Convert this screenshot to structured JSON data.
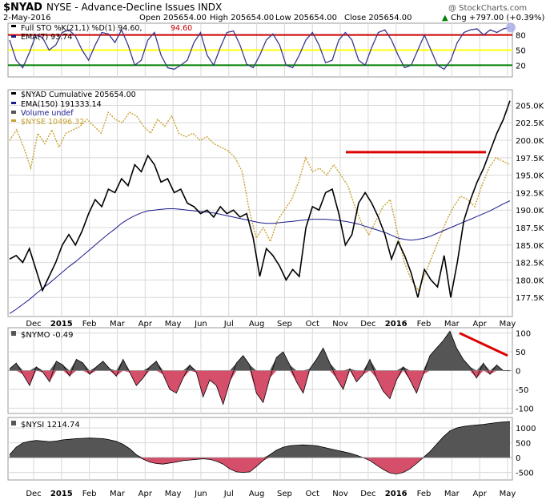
{
  "header": {
    "symbol": "$NYAD",
    "exchange_desc": "NYSE - Advance-Decline Issues INDX",
    "date": "2-May-2016",
    "open": "Open 205654.00",
    "high": "High 205654.00",
    "low": "Low 205654.00",
    "close": "Close 205654.00",
    "chg": "Chg +797.00 (+0.39%)",
    "watermark": "@ StockCharts.com",
    "chg_arrow": "▲"
  },
  "colors": {
    "price": "#000000",
    "ema": "#1a1a8c",
    "nyse": "#c8a030",
    "overbought": "#cc0000",
    "mid": "#ffff00",
    "oversold": "#008000",
    "stoch": "#3a3a8c",
    "pos_fill": "#555555",
    "neg_fill": "#d64f6a",
    "trend": "#dd0000",
    "grid": "#d8d8d8"
  },
  "chart_data": [
    {
      "panel": "stochastic",
      "type": "line",
      "legend": [
        "Full STO %K(21,1) %D(1) 94.60, 94.60",
        "EMA(7) 93.74"
      ],
      "k_label": "Full STO %K(21,1) %D(1) 94.60,",
      "k_value": "94.60",
      "ema_label": "EMA(7) 93.74",
      "ylim": [
        0,
        100
      ],
      "ticks": [
        20,
        50,
        80
      ],
      "levels": [
        80,
        50,
        20
      ],
      "series": [
        {
          "name": "%K",
          "values": [
            70,
            30,
            15,
            45,
            80,
            75,
            50,
            60,
            85,
            90,
            78,
            50,
            30,
            60,
            85,
            82,
            65,
            90,
            60,
            20,
            30,
            70,
            85,
            40,
            15,
            12,
            20,
            30,
            65,
            85,
            40,
            20,
            55,
            85,
            88,
            60,
            22,
            15,
            40,
            70,
            82,
            60,
            20,
            15,
            40,
            70,
            85,
            60,
            25,
            30,
            70,
            85,
            70,
            30,
            20,
            55,
            85,
            90,
            70,
            40,
            15,
            20,
            50,
            80,
            50,
            20,
            12,
            30,
            65,
            85,
            90,
            92,
            80,
            90,
            85,
            92,
            94.6
          ]
        }
      ]
    },
    {
      "panel": "price",
      "type": "line",
      "legend": [
        "$NYAD Cumulative 205654.00",
        "EMA(150) 191333.14",
        "Volume undef",
        "$NYSE 10496.32"
      ],
      "ylim": [
        175000,
        207000
      ],
      "ticks": [
        "177.5K",
        "180.0K",
        "182.5K",
        "185.0K",
        "187.5K",
        "190.0K",
        "192.5K",
        "195.0K",
        "197.5K",
        "200.0K",
        "202.5K",
        "205.0K"
      ],
      "tick_values": [
        177500,
        180000,
        182500,
        185000,
        187500,
        190000,
        192500,
        195000,
        197500,
        200000,
        202500,
        205000
      ],
      "resistance": {
        "value": 198300,
        "label": "resistance line"
      },
      "series": [
        {
          "name": "$NYAD",
          "values": [
            183000,
            183500,
            182500,
            184500,
            181500,
            178500,
            180500,
            182500,
            185000,
            186500,
            185000,
            187000,
            189500,
            191500,
            190500,
            193000,
            192500,
            194500,
            193500,
            196500,
            195500,
            197800,
            196500,
            194000,
            194500,
            192500,
            193000,
            191000,
            190500,
            189500,
            190000,
            189000,
            190500,
            189500,
            190000,
            189000,
            189500,
            186000,
            180500,
            184500,
            183500,
            182000,
            180000,
            181500,
            180500,
            187500,
            190500,
            190000,
            192500,
            193000,
            189500,
            185000,
            186500,
            191000,
            192500,
            191000,
            189000,
            186500,
            183000,
            185500,
            183500,
            181000,
            177500,
            181500,
            180000,
            179000,
            183500,
            177500,
            182500,
            188500,
            191500,
            194000,
            196000,
            198500,
            201000,
            203000,
            205654
          ]
        },
        {
          "name": "EMA(150)",
          "values": [
            175200,
            175800,
            176500,
            177200,
            178000,
            178800,
            179500,
            180300,
            181100,
            181900,
            182600,
            183400,
            184200,
            185000,
            185800,
            186600,
            187300,
            188100,
            188700,
            189200,
            189600,
            189900,
            190000,
            190100,
            190200,
            190200,
            190100,
            190000,
            189900,
            189800,
            189700,
            189600,
            189400,
            189200,
            189000,
            188800,
            188600,
            188400,
            188200,
            188100,
            188100,
            188200,
            188300,
            188400,
            188500,
            188600,
            188700,
            188700,
            188700,
            188600,
            188500,
            188400,
            188200,
            188000,
            187700,
            187400,
            187100,
            186800,
            186400,
            186000,
            185800,
            185700,
            185800,
            186000,
            186300,
            186700,
            187100,
            187500,
            187900,
            188300,
            188700,
            189100,
            189500,
            189900,
            190400,
            190900,
            191333
          ]
        },
        {
          "name": "$NYSE",
          "values": [
            200000,
            201500,
            199000,
            196000,
            201000,
            199500,
            201500,
            199000,
            201000,
            201500,
            202000,
            203000,
            202000,
            201000,
            204000,
            203000,
            202500,
            204000,
            203500,
            202000,
            201000,
            203000,
            202000,
            203500,
            201000,
            200500,
            201000,
            200000,
            200500,
            199500,
            199000,
            198500,
            197500,
            195500,
            190000,
            186000,
            187500,
            185500,
            188500,
            190000,
            191500,
            194000,
            197500,
            195500,
            196000,
            195000,
            196500,
            195000,
            193500,
            190500,
            188000,
            186500,
            188500,
            190500,
            191500,
            187000,
            182500,
            180000,
            178500,
            181000,
            183500,
            186000,
            188500,
            190500,
            192000,
            191500,
            190500,
            193500,
            196000,
            197500,
            197000,
            196500
          ]
        }
      ]
    },
    {
      "panel": "nymo",
      "type": "area",
      "legend": [
        "$NYMO -0.49"
      ],
      "ylim": [
        -110,
        110
      ],
      "ticks": [
        100,
        50,
        0,
        -50,
        -100
      ],
      "series": [
        {
          "name": "$NYMO",
          "values": [
            5,
            20,
            -10,
            -40,
            10,
            -5,
            -30,
            25,
            15,
            -15,
            30,
            20,
            -10,
            10,
            25,
            5,
            -15,
            30,
            -5,
            -40,
            -20,
            10,
            25,
            -10,
            -50,
            -60,
            -20,
            15,
            -5,
            -70,
            -25,
            -40,
            -90,
            -30,
            20,
            40,
            15,
            -60,
            -85,
            -20,
            35,
            50,
            15,
            -30,
            -60,
            5,
            30,
            60,
            20,
            -20,
            -50,
            5,
            -30,
            -10,
            30,
            -20,
            -55,
            -75,
            -25,
            10,
            -25,
            -60,
            -10,
            40,
            60,
            80,
            105,
            60,
            30,
            10,
            -20,
            20,
            -10,
            15,
            0,
            -0.49
          ]
        }
      ]
    },
    {
      "panel": "nysi",
      "type": "area",
      "legend": [
        "$NYSI 1214.74"
      ],
      "ylim": [
        -700,
        1300
      ],
      "ticks": [
        1000,
        500,
        0,
        -500
      ],
      "series": [
        {
          "name": "$NYSI",
          "values": [
            100,
            350,
            500,
            550,
            580,
            560,
            540,
            560,
            600,
            620,
            640,
            650,
            660,
            650,
            640,
            600,
            550,
            450,
            300,
            100,
            -50,
            -150,
            -200,
            -220,
            -180,
            -150,
            -100,
            -80,
            -60,
            -40,
            -60,
            -120,
            -220,
            -380,
            -480,
            -500,
            -480,
            -300,
            -100,
            100,
            250,
            350,
            400,
            420,
            430,
            420,
            400,
            350,
            300,
            250,
            200,
            150,
            80,
            0,
            -100,
            -250,
            -400,
            -520,
            -550,
            -500,
            -380,
            -200,
            0,
            200,
            450,
            700,
            900,
            1000,
            1050,
            1080,
            1100,
            1120,
            1150,
            1180,
            1200,
            1214.74
          ]
        }
      ]
    }
  ],
  "x_axis": {
    "labels": [
      "Dec",
      "2015",
      "Feb",
      "Mar",
      "Apr",
      "May",
      "Jun",
      "Jul",
      "Aug",
      "Sep",
      "Oct",
      "Nov",
      "Dec",
      "2016",
      "Feb",
      "Mar",
      "Apr",
      "May"
    ],
    "bold": [
      "2015",
      "2016"
    ]
  }
}
